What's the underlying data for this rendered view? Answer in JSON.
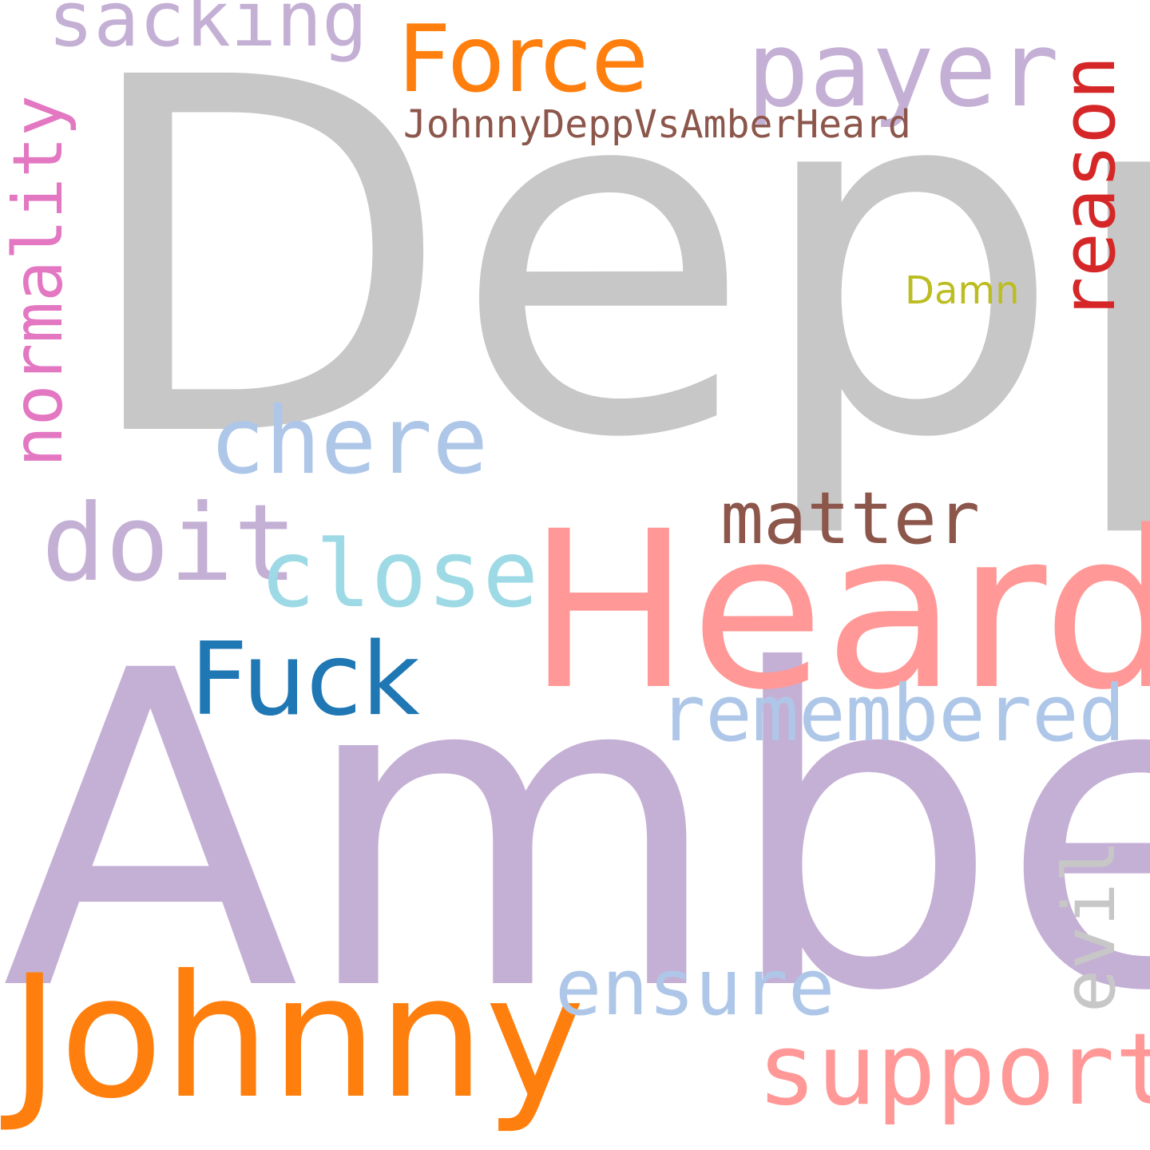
{
  "words": {
    "depp": {
      "text": "Depp",
      "color": "#c7c7c7"
    },
    "amber": {
      "text": "Amber",
      "color": "#c5b0d5"
    },
    "heard": {
      "text": "Heard",
      "color": "#ff9896"
    },
    "johnny": {
      "text": "Johnny",
      "color": "#ff7f0e"
    },
    "force": {
      "text": "Force",
      "color": "#ff7f0e"
    },
    "payer": {
      "text": "payer",
      "color": "#c5b0d5"
    },
    "sacking": {
      "text": "sacking",
      "color": "#c5b0d5"
    },
    "reason": {
      "text": "reason",
      "color": "#d62728"
    },
    "normality": {
      "text": "normality",
      "color": "#e377c2"
    },
    "hashtag": {
      "text": "JohnnyDeppVsAmberHeard",
      "color": "#8c564b"
    },
    "damn": {
      "text": "Damn",
      "color": "#bcbd22"
    },
    "chere": {
      "text": "chere",
      "color": "#aec7e8"
    },
    "matter": {
      "text": "matter",
      "color": "#8c564b"
    },
    "doit": {
      "text": "doit",
      "color": "#c5b0d5"
    },
    "close": {
      "text": "close",
      "color": "#9edae5"
    },
    "fuck": {
      "text": "Fuck",
      "color": "#1f77b4"
    },
    "remembered": {
      "text": "remembered",
      "color": "#aec7e8"
    },
    "evil": {
      "text": "evil",
      "color": "#c7c7c7"
    },
    "ensure": {
      "text": "ensure",
      "color": "#aec7e8"
    },
    "support": {
      "text": "support",
      "color": "#ff9896"
    }
  }
}
